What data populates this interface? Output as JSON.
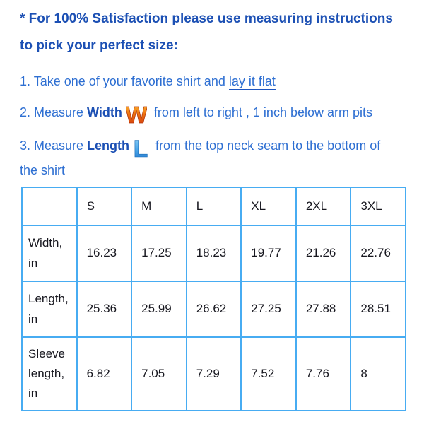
{
  "page": {
    "heading": {
      "line1": "* For 100% Satisfaction please use measuring instructions",
      "line2": "to pick your perfect size:"
    },
    "instructions": [
      {
        "prefix": "1. Take one of your favorite shirt and ",
        "underlined": "lay it flat"
      },
      {
        "prefix": "2. Measure ",
        "keyword": "Width",
        "icon": "w-letter-icon",
        "suffix": " from left to right , 1 inch below arm pits"
      },
      {
        "prefix": "3. Measure ",
        "keyword": "Length",
        "icon": "l-letter-icon",
        "suffix_line1": " from the top neck seam to the bottom of",
        "suffix_line2": "the shirt"
      }
    ],
    "colors": {
      "heading_blue": "#1c50b4",
      "body_blue": "#2e6fd2",
      "underline_blue": "#1d55c0",
      "table_border_blue": "#47acf2",
      "table_text": "#17171f",
      "w_icon_top": "#fcc13e",
      "w_icon_bottom": "#cc2b0c",
      "l_icon_top": "#92d4f7",
      "l_icon_bottom": "#1f72c8"
    },
    "size_table": {
      "columns": [
        "",
        "S",
        "M",
        "L",
        "XL",
        "2XL",
        "3XL"
      ],
      "rows": [
        {
          "label": "Width, in",
          "values": [
            "16.23",
            "17.25",
            "18.23",
            "19.77",
            "21.26",
            "22.76"
          ]
        },
        {
          "label": "Length, in",
          "values": [
            "25.36",
            "25.99",
            "26.62",
            "27.25",
            "27.88",
            "28.51"
          ]
        },
        {
          "label": "Sleeve length, in",
          "values": [
            "6.82",
            "7.05",
            "7.29",
            "7.52",
            "7.76",
            "8"
          ]
        }
      ]
    }
  }
}
